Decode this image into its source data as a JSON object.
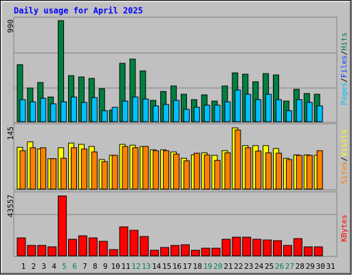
{
  "title": "Daily usage for April 2025",
  "legend_separator": "/",
  "chart_data": [
    {
      "type": "bar",
      "ylim": [
        0,
        990
      ],
      "yticks": [
        990
      ],
      "series": [
        {
          "name": "Hits",
          "color": "#008040",
          "values": [
            559,
            330,
            384,
            242,
            990,
            451,
            438,
            424,
            323,
            114,
            572,
            613,
            498,
            209,
            296,
            350,
            269,
            216,
            263,
            202,
            350,
            478,
            465,
            391,
            471,
            458,
            202,
            317,
            276,
            269,
            null
          ]
        },
        {
          "name": "Files",
          "color": "#0040ff",
          "values": [
            null,
            null,
            null,
            null,
            null,
            null,
            null,
            null,
            null,
            null,
            null,
            null,
            null,
            null,
            null,
            null,
            null,
            null,
            null,
            null,
            null,
            null,
            null,
            null,
            null,
            null,
            null,
            null,
            null,
            null,
            null
          ]
        },
        {
          "name": "Pages",
          "color": "#00c0ff",
          "values": [
            216,
            195,
            229,
            175,
            195,
            242,
            189,
            236,
            108,
            141,
            202,
            242,
            222,
            155,
            168,
            209,
            121,
            141,
            162,
            162,
            195,
            310,
            269,
            216,
            269,
            216,
            108,
            216,
            189,
            155,
            null
          ]
        }
      ]
    },
    {
      "type": "bar",
      "ylim": [
        0,
        145
      ],
      "yticks": [
        145
      ],
      "series": [
        {
          "name": "Visits",
          "color": "#ffff00",
          "values": [
            99,
            112,
            95,
            72,
            98,
            109,
            106,
            101,
            70,
            80,
            106,
            104,
            101,
            93,
            93,
            88,
            73,
            81,
            86,
            80,
            91,
            145,
            103,
            103,
            103,
            96,
            73,
            81,
            81,
            80,
            null
          ]
        },
        {
          "name": "Sites",
          "color": "#ff8000",
          "values": [
            91,
            98,
            98,
            72,
            73,
            98,
            95,
            88,
            65,
            80,
            101,
            98,
            101,
            91,
            91,
            83,
            67,
            85,
            81,
            68,
            86,
            140,
            98,
            90,
            86,
            85,
            70,
            80,
            80,
            91,
            null
          ]
        }
      ]
    },
    {
      "type": "bar",
      "ylim": [
        0,
        43557
      ],
      "yticks": [
        43557
      ],
      "categories": [
        "1",
        "2",
        "3",
        "4",
        "5",
        "6",
        "7",
        "8",
        "9",
        "10",
        "11",
        "12",
        "13",
        "14",
        "15",
        "16",
        "17",
        "18",
        "19",
        "20",
        "21",
        "22",
        "23",
        "24",
        "25",
        "26",
        "27",
        "28",
        "29",
        "30",
        "31"
      ],
      "category_colors": [
        "#000000",
        "#000000",
        "#000000",
        "#000000",
        "#00805c",
        "#00805c",
        "#000000",
        "#000000",
        "#000000",
        "#000000",
        "#000000",
        "#00805c",
        "#00805c",
        "#000000",
        "#000000",
        "#000000",
        "#000000",
        "#000000",
        "#00805c",
        "#00805c",
        "#000000",
        "#000000",
        "#000000",
        "#000000",
        "#000000",
        "#00805c",
        "#00805c",
        "#000000",
        "#000000",
        "#000000",
        "#000000"
      ],
      "series": [
        {
          "name": "KBytes",
          "color": "#ff0000",
          "values": [
            13017,
            7510,
            7510,
            6508,
            43557,
            12016,
            14519,
            13017,
            10514,
            4506,
            21029,
            18525,
            14018,
            4005,
            6008,
            7510,
            8010,
            4005,
            5507,
            5507,
            12016,
            13518,
            13518,
            12016,
            11515,
            11014,
            7510,
            12517,
            6508,
            6508,
            null
          ]
        }
      ]
    }
  ]
}
